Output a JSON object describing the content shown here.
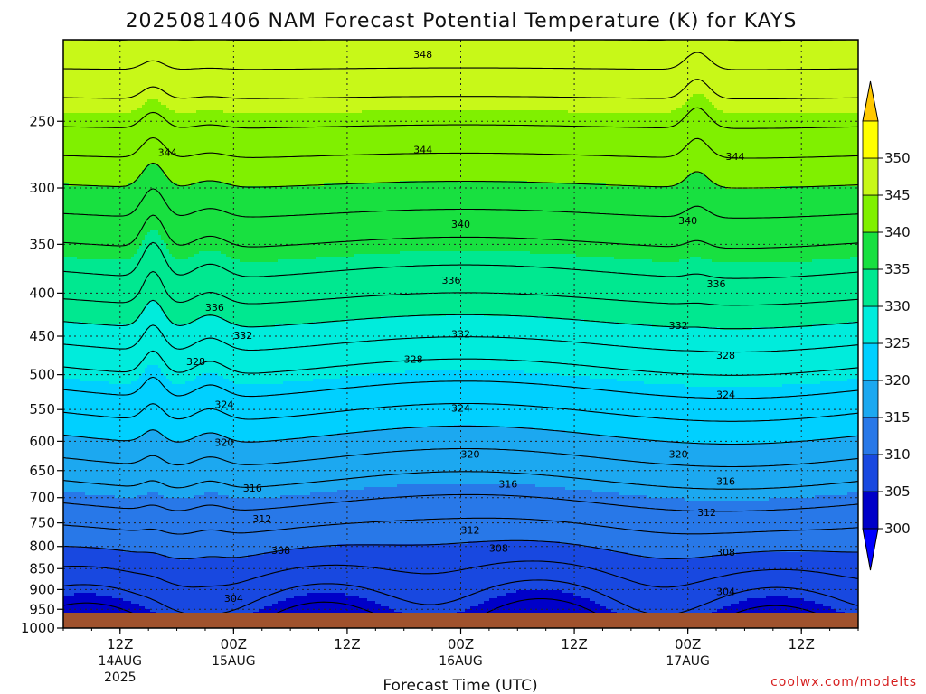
{
  "chart_data": {
    "type": "heatmap",
    "title": "2025081406 NAM Forecast Potential Temperature (K) for KAYS",
    "xlabel": "Forecast Time (UTC)",
    "credit": "coolwx.com/modelts",
    "y_axis": {
      "label": "",
      "scale": "log",
      "direction": "pressure-decreasing-upward",
      "range": [
        1000,
        200
      ],
      "ticks": [
        "250",
        "300",
        "350",
        "400",
        "450",
        "500",
        "550",
        "600",
        "650",
        "700",
        "750",
        "800",
        "850",
        "900",
        "950",
        "1000"
      ]
    },
    "x_axis": {
      "range_hours": [
        0,
        84
      ],
      "ticks": [
        {
          "hour": 6,
          "label": "12Z",
          "date1": "14AUG",
          "date2": "2025"
        },
        {
          "hour": 18,
          "label": "00Z",
          "date1": "15AUG",
          "date2": ""
        },
        {
          "hour": 30,
          "label": "12Z",
          "date1": "",
          "date2": ""
        },
        {
          "hour": 42,
          "label": "00Z",
          "date1": "16AUG",
          "date2": ""
        },
        {
          "hour": 54,
          "label": "12Z",
          "date1": "",
          "date2": ""
        },
        {
          "hour": 66,
          "label": "00Z",
          "date1": "17AUG",
          "date2": ""
        },
        {
          "hour": 78,
          "label": "12Z",
          "date1": "",
          "date2": ""
        }
      ]
    },
    "colorbar": {
      "levels": [
        "300",
        "305",
        "310",
        "315",
        "320",
        "325",
        "330",
        "335",
        "340",
        "345",
        "350"
      ],
      "colors": [
        "#0000c8",
        "#1848e0",
        "#2878e8",
        "#1ca8f0",
        "#00d0ff",
        "#00ecdc",
        "#00e890",
        "#18e040",
        "#80f000",
        "#c8f818",
        "#ffff00"
      ],
      "under_color": "#0000ff",
      "over_color": "#ffc800",
      "units": "K"
    },
    "contour_labels": [
      {
        "text": "348",
        "hour": 38,
        "p": 208
      },
      {
        "text": "344",
        "hour": 11,
        "p": 272
      },
      {
        "text": "344",
        "hour": 38,
        "p": 270
      },
      {
        "text": "344",
        "hour": 71,
        "p": 275
      },
      {
        "text": "340",
        "hour": 42,
        "p": 331
      },
      {
        "text": "340",
        "hour": 66,
        "p": 328
      },
      {
        "text": "336",
        "hour": 41,
        "p": 386
      },
      {
        "text": "336",
        "hour": 69,
        "p": 390
      },
      {
        "text": "336",
        "hour": 16,
        "p": 416
      },
      {
        "text": "332",
        "hour": 19,
        "p": 449
      },
      {
        "text": "332",
        "hour": 42,
        "p": 447
      },
      {
        "text": "332",
        "hour": 65,
        "p": 437
      },
      {
        "text": "328",
        "hour": 14,
        "p": 482
      },
      {
        "text": "328",
        "hour": 37,
        "p": 479
      },
      {
        "text": "328",
        "hour": 70,
        "p": 474
      },
      {
        "text": "324",
        "hour": 17,
        "p": 542
      },
      {
        "text": "324",
        "hour": 42,
        "p": 548
      },
      {
        "text": "324",
        "hour": 70,
        "p": 528
      },
      {
        "text": "320",
        "hour": 17,
        "p": 602
      },
      {
        "text": "320",
        "hour": 43,
        "p": 621
      },
      {
        "text": "320",
        "hour": 65,
        "p": 621
      },
      {
        "text": "316",
        "hour": 20,
        "p": 682
      },
      {
        "text": "316",
        "hour": 47,
        "p": 674
      },
      {
        "text": "316",
        "hour": 70,
        "p": 669
      },
      {
        "text": "312",
        "hour": 21,
        "p": 741
      },
      {
        "text": "312",
        "hour": 43,
        "p": 765
      },
      {
        "text": "312",
        "hour": 68,
        "p": 729
      },
      {
        "text": "308",
        "hour": 23,
        "p": 808
      },
      {
        "text": "308",
        "hour": 46,
        "p": 803
      },
      {
        "text": "308",
        "hour": 70,
        "p": 812
      },
      {
        "text": "304",
        "hour": 18,
        "p": 922
      },
      {
        "text": "304",
        "hour": 70,
        "p": 905
      }
    ],
    "surface_color": "#a0522d"
  }
}
